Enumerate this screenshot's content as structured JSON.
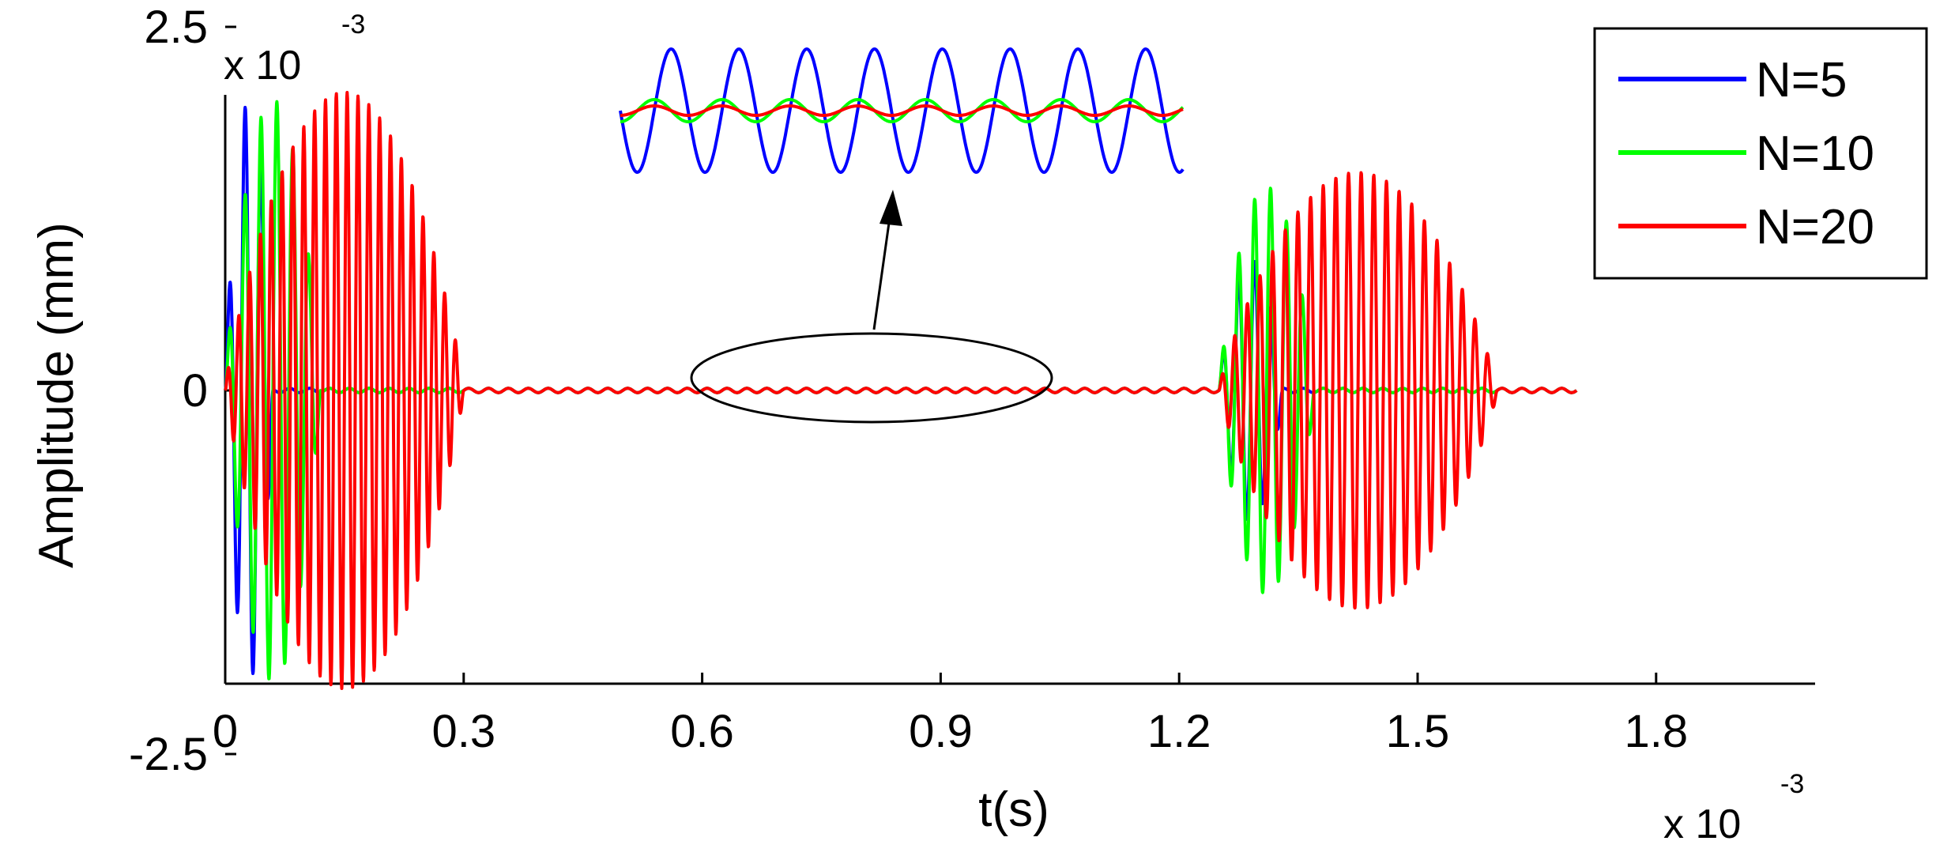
{
  "chart_data": {
    "type": "line",
    "title": "",
    "xlabel": "t(s)",
    "ylabel": "Amplitude (mm)",
    "x_multiplier_label": "x 10",
    "x_multiplier_exp": "-3",
    "y_multiplier_label": "x 10",
    "y_multiplier_exp": "-3",
    "xlim": [
      0,
      2.0
    ],
    "ylim": [
      -4.2,
      4.2
    ],
    "x_ticks": [
      0,
      0.3,
      0.6,
      0.9,
      1.2,
      1.5,
      1.8
    ],
    "x_tick_labels": [
      "0",
      "0.3",
      "0.6",
      "0.9",
      "1.2",
      "1.5",
      "1.8"
    ],
    "y_ticks": [
      2.5,
      0,
      -2.5
    ],
    "y_tick_labels": [
      "2.5",
      "0",
      "-2.5"
    ],
    "grid": false,
    "legend_position": "top-right",
    "series": [
      {
        "name": "N=5",
        "color": "#0000ff",
        "bursts": [
          {
            "start": 0.0,
            "end": 0.06,
            "peak_amplitude": 2.0,
            "cycles": 3
          },
          {
            "start": 1.25,
            "end": 1.33,
            "peak_amplitude": 0.9,
            "cycles": 4
          }
        ],
        "end_time": 1.7
      },
      {
        "name": "N=10",
        "color": "#00ff00",
        "bursts": [
          {
            "start": 0.0,
            "end": 0.12,
            "peak_amplitude": 2.0,
            "cycles": 6
          },
          {
            "start": 1.25,
            "end": 1.37,
            "peak_amplitude": 1.4,
            "cycles": 6
          }
        ],
        "end_time": 1.7
      },
      {
        "name": "N=20",
        "color": "#ff0000",
        "bursts": [
          {
            "start": 0.0,
            "end": 0.3,
            "peak_amplitude": 2.05,
            "cycles": 22
          },
          {
            "start": 1.25,
            "end": 1.6,
            "peak_amplitude": 1.5,
            "cycles": 22
          }
        ],
        "end_time": 1.7
      }
    ],
    "annotations": [
      {
        "type": "ellipse",
        "around_x": [
          0.58,
          1.04
        ],
        "around_y": 0,
        "note": "zoom region"
      },
      {
        "type": "arrow",
        "from_x": 0.82,
        "to_inset": true
      },
      {
        "type": "inset",
        "shows": "magnified residual oscillation between bursts"
      }
    ]
  }
}
